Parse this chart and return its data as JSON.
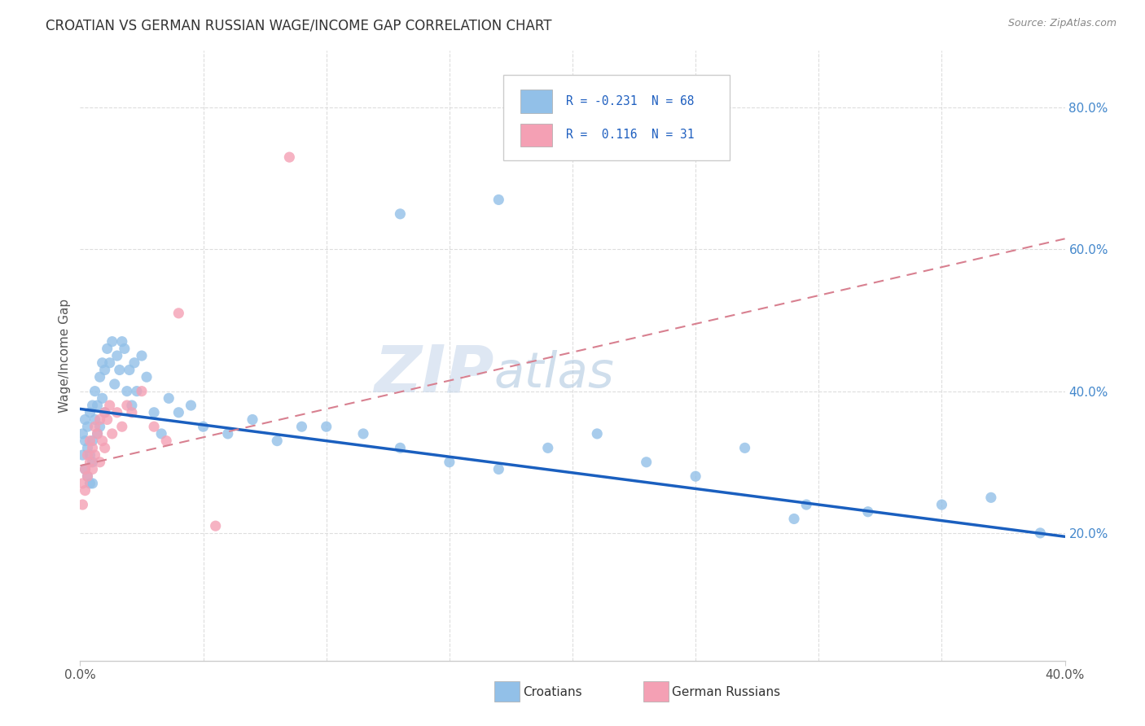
{
  "title": "CROATIAN VS GERMAN RUSSIAN WAGE/INCOME GAP CORRELATION CHART",
  "source": "Source: ZipAtlas.com",
  "ylabel": "Wage/Income Gap",
  "xlim": [
    0.0,
    0.4
  ],
  "ylim": [
    0.02,
    0.88
  ],
  "croatian_color": "#92C0E8",
  "german_russian_color": "#F4A0B4",
  "trend_croatian_color": "#1A5FBF",
  "trend_german_russian_color": "#D88090",
  "background_color": "#FFFFFF",
  "grid_color": "#DDDDDD",
  "legend_text_color": "#2060C0",
  "watermark_color": "#C0D4E8",
  "R_croatian": -0.231,
  "N_croatian": 68,
  "R_german_russian": 0.116,
  "N_german_russian": 31,
  "trend_cr_y0": 0.375,
  "trend_cr_y1": 0.195,
  "trend_gr_y0": 0.295,
  "trend_gr_y1": 0.615,
  "cr_x": [
    0.001,
    0.001,
    0.002,
    0.002,
    0.002,
    0.003,
    0.003,
    0.003,
    0.004,
    0.004,
    0.004,
    0.005,
    0.005,
    0.005,
    0.005,
    0.006,
    0.006,
    0.007,
    0.007,
    0.008,
    0.008,
    0.009,
    0.009,
    0.01,
    0.01,
    0.011,
    0.012,
    0.013,
    0.014,
    0.015,
    0.016,
    0.017,
    0.018,
    0.019,
    0.02,
    0.021,
    0.022,
    0.023,
    0.025,
    0.027,
    0.03,
    0.033,
    0.036,
    0.04,
    0.045,
    0.05,
    0.06,
    0.07,
    0.08,
    0.09,
    0.1,
    0.115,
    0.13,
    0.15,
    0.17,
    0.19,
    0.21,
    0.23,
    0.25,
    0.27,
    0.295,
    0.32,
    0.35,
    0.37,
    0.39,
    0.13,
    0.17,
    0.29
  ],
  "cr_y": [
    0.34,
    0.31,
    0.33,
    0.36,
    0.29,
    0.35,
    0.32,
    0.28,
    0.37,
    0.31,
    0.27,
    0.38,
    0.33,
    0.3,
    0.27,
    0.36,
    0.4,
    0.38,
    0.34,
    0.42,
    0.35,
    0.44,
    0.39,
    0.43,
    0.37,
    0.46,
    0.44,
    0.47,
    0.41,
    0.45,
    0.43,
    0.47,
    0.46,
    0.4,
    0.43,
    0.38,
    0.44,
    0.4,
    0.45,
    0.42,
    0.37,
    0.34,
    0.39,
    0.37,
    0.38,
    0.35,
    0.34,
    0.36,
    0.33,
    0.35,
    0.35,
    0.34,
    0.32,
    0.3,
    0.29,
    0.32,
    0.34,
    0.3,
    0.28,
    0.32,
    0.24,
    0.23,
    0.24,
    0.25,
    0.2,
    0.65,
    0.67,
    0.22
  ],
  "gr_x": [
    0.001,
    0.001,
    0.002,
    0.002,
    0.003,
    0.003,
    0.004,
    0.004,
    0.005,
    0.005,
    0.006,
    0.006,
    0.007,
    0.008,
    0.008,
    0.009,
    0.01,
    0.01,
    0.011,
    0.012,
    0.013,
    0.015,
    0.017,
    0.019,
    0.021,
    0.025,
    0.03,
    0.035,
    0.04,
    0.055,
    0.085
  ],
  "gr_y": [
    0.27,
    0.24,
    0.29,
    0.26,
    0.31,
    0.28,
    0.3,
    0.33,
    0.29,
    0.32,
    0.35,
    0.31,
    0.34,
    0.36,
    0.3,
    0.33,
    0.37,
    0.32,
    0.36,
    0.38,
    0.34,
    0.37,
    0.35,
    0.38,
    0.37,
    0.4,
    0.35,
    0.33,
    0.51,
    0.21,
    0.73
  ]
}
